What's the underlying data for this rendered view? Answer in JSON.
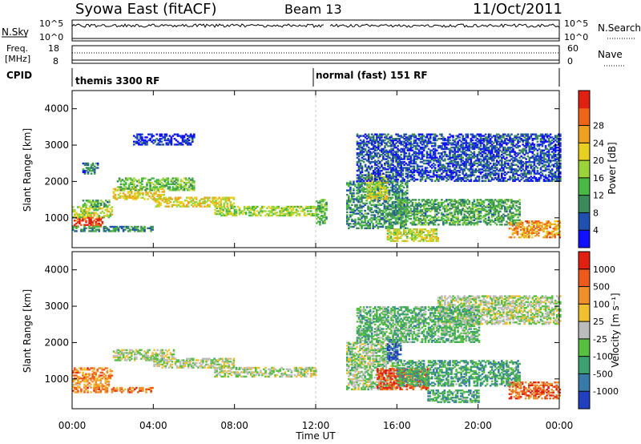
{
  "header": {
    "title": "Syowa East (fitACF)",
    "beam": "Beam 13",
    "date": "11/Oct/2011"
  },
  "nsky_panel": {
    "left_label": "N.Sky",
    "left_ticks": [
      "10^5",
      "10^0"
    ],
    "right_label": "N.Search",
    "right_ticks": [
      "10^5",
      "10^0"
    ]
  },
  "freq_panel": {
    "left_label_1": "Freq.",
    "left_label_2": "[MHz]",
    "left_ticks": [
      "18",
      "8"
    ],
    "right_label": "Nave",
    "right_ticks": [
      "60",
      "0"
    ]
  },
  "cpid": {
    "label": "CPID",
    "modes": [
      "themis 3300 RF",
      "normal (fast) 151 RF"
    ]
  },
  "chart_data": [
    {
      "type": "heatmap",
      "name": "Power",
      "ylabel": "Slant Range [km]",
      "ylim": [
        180,
        4500
      ],
      "yticks": [
        "1000",
        "2000",
        "3000",
        "4000"
      ],
      "xlabel": "Time UT",
      "xlim_hours": [
        0,
        24
      ],
      "colorbar": {
        "label": "Power [dB]",
        "ticks": [
          "4",
          "8",
          "12",
          "16",
          "20",
          "24",
          "28"
        ],
        "colors": [
          "#1010ff",
          "#2050b0",
          "#3c8a5a",
          "#49b845",
          "#9ad43a",
          "#e8d020",
          "#f0a020",
          "#ee6418",
          "#e02010"
        ]
      },
      "bands": [
        {
          "t0": 0.0,
          "t1": 1.5,
          "r0": 750,
          "r1": 1000,
          "level": 0.92
        },
        {
          "t0": 0.0,
          "t1": 2.0,
          "r0": 1000,
          "r1": 1300,
          "level": 0.55
        },
        {
          "t0": 0.5,
          "t1": 1.8,
          "r0": 1300,
          "r1": 1500,
          "level": 0.35
        },
        {
          "t0": 2.0,
          "t1": 4.5,
          "r0": 1500,
          "r1": 1800,
          "level": 0.62
        },
        {
          "t0": 2.2,
          "t1": 6.0,
          "r0": 1750,
          "r1": 2100,
          "level": 0.42
        },
        {
          "t0": 4.0,
          "t1": 8.0,
          "r0": 1300,
          "r1": 1550,
          "level": 0.6
        },
        {
          "t0": 7.0,
          "t1": 12.0,
          "r0": 1050,
          "r1": 1300,
          "level": 0.48
        },
        {
          "t0": 0.0,
          "t1": 4.0,
          "r0": 620,
          "r1": 760,
          "level": 0.3
        },
        {
          "t0": 12.0,
          "t1": 12.5,
          "r0": 800,
          "r1": 1500,
          "level": 0.4
        },
        {
          "t0": 13.5,
          "t1": 16.5,
          "r0": 700,
          "r1": 2000,
          "level": 0.3
        },
        {
          "t0": 14.5,
          "t1": 15.5,
          "r0": 1500,
          "r1": 2200,
          "level": 0.55
        },
        {
          "t0": 15.5,
          "t1": 18.0,
          "r0": 350,
          "r1": 700,
          "level": 0.55
        },
        {
          "t0": 16.0,
          "t1": 22.0,
          "r0": 800,
          "r1": 1500,
          "level": 0.35
        },
        {
          "t0": 21.5,
          "t1": 24.0,
          "r0": 450,
          "r1": 900,
          "level": 0.75
        },
        {
          "t0": 14.0,
          "t1": 24.0,
          "r0": 2000,
          "r1": 3300,
          "level": 0.15
        },
        {
          "t0": 3.0,
          "t1": 6.0,
          "r0": 3000,
          "r1": 3300,
          "level": 0.1
        },
        {
          "t0": 0.5,
          "t1": 1.3,
          "r0": 2200,
          "r1": 2500,
          "level": 0.22
        }
      ]
    },
    {
      "type": "heatmap",
      "name": "Velocity",
      "ylabel": "Slant Range [km]",
      "ylim": [
        180,
        4500
      ],
      "yticks": [
        "1000",
        "2000",
        "3000",
        "4000"
      ],
      "xlabel": "Time UT",
      "xlim_hours": [
        0,
        24
      ],
      "colorbar": {
        "label": "Velocity [m s⁻¹]",
        "ticks": [
          "1000",
          "500",
          "100",
          "25",
          "-25",
          "-100",
          "-500",
          "-1000"
        ],
        "colors": [
          "#2040c0",
          "#3a7aa8",
          "#3ca070",
          "#58c040",
          "#bcbcbc",
          "#f0c030",
          "#f0902a",
          "#ee5a1c",
          "#e02010"
        ]
      },
      "bands": [
        {
          "t0": 0.0,
          "t1": 1.8,
          "r0": 750,
          "r1": 1000,
          "level": 0.65
        },
        {
          "t0": 0.0,
          "t1": 2.0,
          "r0": 1000,
          "r1": 1300,
          "level": 0.75
        },
        {
          "t0": 2.0,
          "t1": 5.0,
          "r0": 1500,
          "r1": 1800,
          "level": 0.48
        },
        {
          "t0": 4.0,
          "t1": 8.0,
          "r0": 1300,
          "r1": 1550,
          "level": 0.48
        },
        {
          "t0": 7.0,
          "t1": 12.0,
          "r0": 1050,
          "r1": 1300,
          "level": 0.48
        },
        {
          "t0": 0.0,
          "t1": 4.0,
          "r0": 620,
          "r1": 760,
          "level": 0.78
        },
        {
          "t0": 13.5,
          "t1": 16.0,
          "r0": 700,
          "r1": 2000,
          "level": 0.45
        },
        {
          "t0": 15.0,
          "t1": 17.5,
          "r0": 700,
          "r1": 1300,
          "level": 0.88
        },
        {
          "t0": 15.5,
          "t1": 16.2,
          "r0": 1500,
          "r1": 2100,
          "level": 0.1
        },
        {
          "t0": 16.0,
          "t1": 22.0,
          "r0": 800,
          "r1": 1500,
          "level": 0.3
        },
        {
          "t0": 21.5,
          "t1": 24.0,
          "r0": 450,
          "r1": 900,
          "level": 0.82
        },
        {
          "t0": 18.0,
          "t1": 24.0,
          "r0": 2500,
          "r1": 3300,
          "level": 0.48
        },
        {
          "t0": 14.0,
          "t1": 20.0,
          "r0": 2000,
          "r1": 3000,
          "level": 0.35
        },
        {
          "t0": 17.5,
          "t1": 20.0,
          "r0": 350,
          "r1": 700,
          "level": 0.32
        }
      ]
    }
  ],
  "time_axis": {
    "ticks": [
      "00:00",
      "04:00",
      "08:00",
      "12:00",
      "16:00",
      "20:00",
      "00:00"
    ],
    "label": "Time UT"
  }
}
